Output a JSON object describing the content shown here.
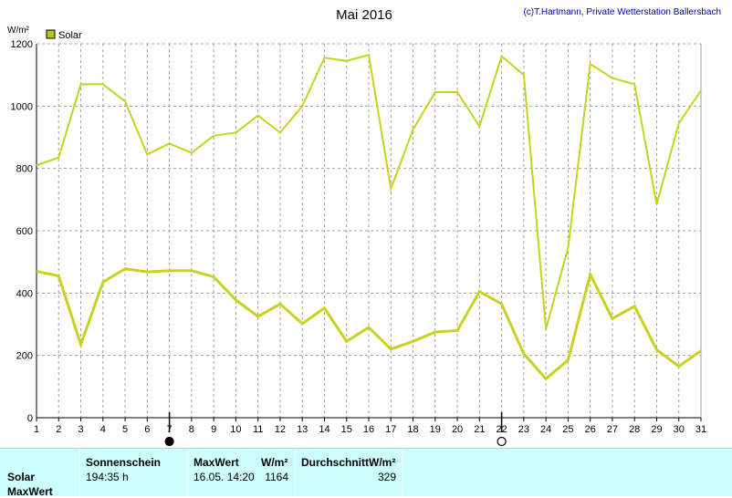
{
  "copyright": "(c)T.Hartmann, Private Wetterstation Ballersbach",
  "colors": {
    "line": "#c8d21e",
    "legend_fill": "#b9c31c",
    "panel_bg": "#ccfffd",
    "grid": "#a0a0a0"
  },
  "chart_data": {
    "type": "line",
    "title": "Mai 2016",
    "ylabel": "W/m²",
    "ylim": [
      0,
      1200
    ],
    "yticks": [
      0,
      200,
      400,
      600,
      800,
      1000,
      1200
    ],
    "x": [
      1,
      2,
      3,
      4,
      5,
      6,
      7,
      8,
      9,
      10,
      11,
      12,
      13,
      14,
      15,
      16,
      17,
      18,
      19,
      20,
      21,
      22,
      23,
      24,
      25,
      26,
      27,
      28,
      29,
      30,
      31
    ],
    "grid": true,
    "legend": [
      {
        "label": "Solar",
        "color": "#b9c31c"
      }
    ],
    "legend_position": "top-left",
    "moon_phases": [
      {
        "day": 7,
        "phase": "new-moon"
      },
      {
        "day": 22,
        "phase": "full-moon"
      }
    ],
    "series": [
      {
        "role": "daily-max",
        "values": [
          810,
          835,
          1070,
          1070,
          1015,
          845,
          880,
          850,
          905,
          915,
          970,
          915,
          1000,
          1155,
          1145,
          1164,
          735,
          925,
          1045,
          1045,
          935,
          1160,
          1100,
          285,
          545,
          1135,
          1090,
          1070,
          685,
          945,
          1050
        ]
      },
      {
        "role": "daily-mean",
        "values": [
          470,
          455,
          235,
          435,
          478,
          468,
          472,
          472,
          452,
          378,
          325,
          365,
          302,
          352,
          245,
          290,
          220,
          245,
          275,
          280,
          405,
          365,
          205,
          125,
          185,
          460,
          318,
          358,
          218,
          165,
          215
        ]
      }
    ]
  },
  "summary": {
    "row_labels": [
      "Solar",
      "MaxWert"
    ],
    "sunshine_header": "Sonnenschein",
    "sunshine_value": "194:35 h",
    "max_header": "MaxWert",
    "max_unit": "W/m²",
    "max_datetime": "16.05.  14:20",
    "max_value": "1164",
    "avg_header": "Durchschnitt",
    "avg_unit": "W/m²",
    "avg_value": "329"
  }
}
